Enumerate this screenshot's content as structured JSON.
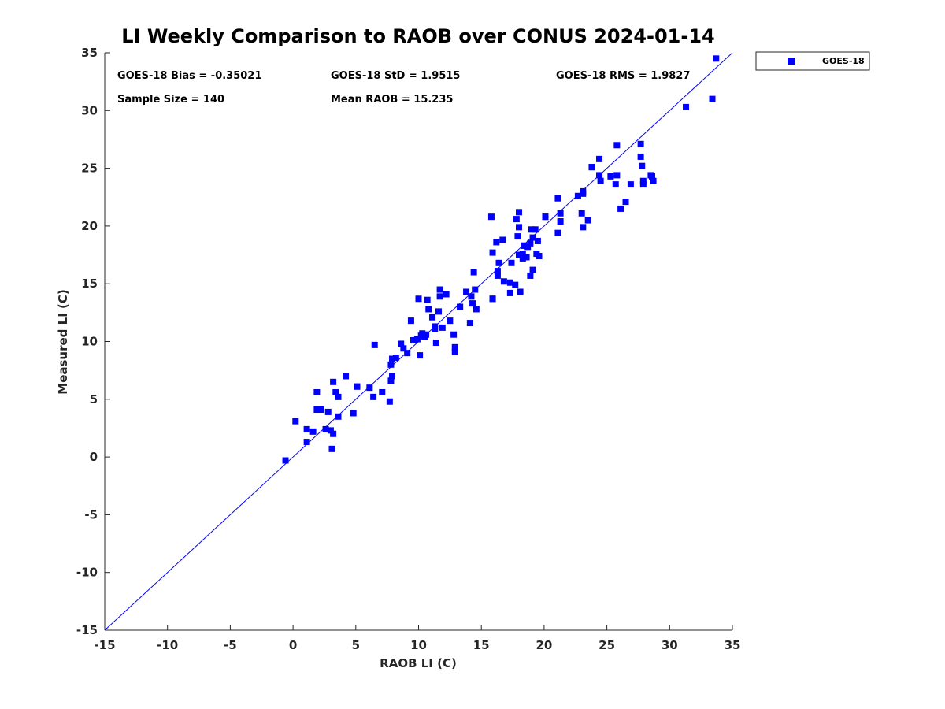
{
  "chart_data": {
    "type": "scatter",
    "title": "LI Weekly Comparison to RAOB over CONUS 2024-01-14",
    "xlabel": "RAOB LI (C)",
    "ylabel": "Measured LI (C)",
    "xlim": [
      -15,
      35
    ],
    "ylim": [
      -15,
      35
    ],
    "xticks": [
      -15,
      -10,
      -5,
      0,
      5,
      10,
      15,
      20,
      25,
      30,
      35
    ],
    "yticks": [
      -15,
      -10,
      -5,
      0,
      5,
      10,
      15,
      20,
      25,
      30,
      35
    ],
    "grid": false,
    "legend_position": "top-right-outside",
    "reference_line": {
      "label": "1:1 line",
      "from": [
        -15,
        -15
      ],
      "to": [
        35,
        35
      ],
      "color": "#0000ff"
    },
    "series": [
      {
        "name": "GOES-18",
        "color": "#0000ff",
        "marker": "square",
        "points": [
          [
            -0.6,
            -0.3
          ],
          [
            0.2,
            3.1
          ],
          [
            1.1,
            2.4
          ],
          [
            1.1,
            1.3
          ],
          [
            1.6,
            2.2
          ],
          [
            1.9,
            5.6
          ],
          [
            1.9,
            4.1
          ],
          [
            2.2,
            4.1
          ],
          [
            2.6,
            2.4
          ],
          [
            2.8,
            3.9
          ],
          [
            3.0,
            2.3
          ],
          [
            3.2,
            6.5
          ],
          [
            3.2,
            2.0
          ],
          [
            3.1,
            0.7
          ],
          [
            3.4,
            5.6
          ],
          [
            3.6,
            5.2
          ],
          [
            3.6,
            3.5
          ],
          [
            4.2,
            7.0
          ],
          [
            4.8,
            3.8
          ],
          [
            5.1,
            6.1
          ],
          [
            6.1,
            6.0
          ],
          [
            6.4,
            5.2
          ],
          [
            6.5,
            9.7
          ],
          [
            7.1,
            5.6
          ],
          [
            7.7,
            4.8
          ],
          [
            7.8,
            6.6
          ],
          [
            7.8,
            8.0
          ],
          [
            7.9,
            8.5
          ],
          [
            7.9,
            7.0
          ],
          [
            8.2,
            8.6
          ],
          [
            8.6,
            9.8
          ],
          [
            8.8,
            9.4
          ],
          [
            9.1,
            9.0
          ],
          [
            9.4,
            11.8
          ],
          [
            9.6,
            10.1
          ],
          [
            9.9,
            10.2
          ],
          [
            10.0,
            13.7
          ],
          [
            10.1,
            8.8
          ],
          [
            10.2,
            10.5
          ],
          [
            10.3,
            10.7
          ],
          [
            10.5,
            10.4
          ],
          [
            10.6,
            10.6
          ],
          [
            10.7,
            13.6
          ],
          [
            10.8,
            12.8
          ],
          [
            11.1,
            12.1
          ],
          [
            11.3,
            11.1
          ],
          [
            11.3,
            11.3
          ],
          [
            11.4,
            9.9
          ],
          [
            11.6,
            12.6
          ],
          [
            11.7,
            14.5
          ],
          [
            11.7,
            13.9
          ],
          [
            11.9,
            11.2
          ],
          [
            12.2,
            14.1
          ],
          [
            12.5,
            11.8
          ],
          [
            12.8,
            10.6
          ],
          [
            12.9,
            9.5
          ],
          [
            12.9,
            9.1
          ],
          [
            13.3,
            13.0
          ],
          [
            13.8,
            14.3
          ],
          [
            14.1,
            11.6
          ],
          [
            14.2,
            13.9
          ],
          [
            14.3,
            13.3
          ],
          [
            14.4,
            16.0
          ],
          [
            14.5,
            14.5
          ],
          [
            14.6,
            12.8
          ],
          [
            15.8,
            20.8
          ],
          [
            15.9,
            17.7
          ],
          [
            15.9,
            13.7
          ],
          [
            16.2,
            18.6
          ],
          [
            16.3,
            16.1
          ],
          [
            16.3,
            15.7
          ],
          [
            16.4,
            16.8
          ],
          [
            16.7,
            18.8
          ],
          [
            16.8,
            15.2
          ],
          [
            17.3,
            15.1
          ],
          [
            17.3,
            14.2
          ],
          [
            17.4,
            16.8
          ],
          [
            17.7,
            14.9
          ],
          [
            17.8,
            20.6
          ],
          [
            17.9,
            19.1
          ],
          [
            18.0,
            21.2
          ],
          [
            18.0,
            19.9
          ],
          [
            18.0,
            17.5
          ],
          [
            18.1,
            14.3
          ],
          [
            18.3,
            17.6
          ],
          [
            18.3,
            17.2
          ],
          [
            18.4,
            18.3
          ],
          [
            18.6,
            17.3
          ],
          [
            18.7,
            18.2
          ],
          [
            18.9,
            18.5
          ],
          [
            18.9,
            15.7
          ],
          [
            19.0,
            19.7
          ],
          [
            19.1,
            16.2
          ],
          [
            19.1,
            19.0
          ],
          [
            19.3,
            19.7
          ],
          [
            19.4,
            17.6
          ],
          [
            19.5,
            18.7
          ],
          [
            19.6,
            17.4
          ],
          [
            20.1,
            20.8
          ],
          [
            21.1,
            22.4
          ],
          [
            21.1,
            19.4
          ],
          [
            21.3,
            21.1
          ],
          [
            21.3,
            20.4
          ],
          [
            22.7,
            22.6
          ],
          [
            23.0,
            21.1
          ],
          [
            23.1,
            23.0
          ],
          [
            23.1,
            22.8
          ],
          [
            23.1,
            19.9
          ],
          [
            23.5,
            20.5
          ],
          [
            23.8,
            25.1
          ],
          [
            24.4,
            24.4
          ],
          [
            24.4,
            25.8
          ],
          [
            24.5,
            23.9
          ],
          [
            25.3,
            24.3
          ],
          [
            25.7,
            23.6
          ],
          [
            25.8,
            27.0
          ],
          [
            25.8,
            24.4
          ],
          [
            26.1,
            21.5
          ],
          [
            26.5,
            22.1
          ],
          [
            26.9,
            23.6
          ],
          [
            27.7,
            27.1
          ],
          [
            27.7,
            26.0
          ],
          [
            27.8,
            25.2
          ],
          [
            27.9,
            23.9
          ],
          [
            27.9,
            23.6
          ],
          [
            28.5,
            24.4
          ],
          [
            28.6,
            24.3
          ],
          [
            28.7,
            23.9
          ],
          [
            31.3,
            30.3
          ],
          [
            33.4,
            31.0
          ],
          [
            33.7,
            34.5
          ],
          [
            4.8,
            3.8
          ],
          [
            15.9,
            13.7
          ],
          [
            20.1,
            20.8
          ],
          [
            9.6,
            10.1
          ],
          [
            13.3,
            13.0
          ],
          [
            12.2,
            14.1
          ],
          [
            18.4,
            18.3
          ],
          [
            23.8,
            25.1
          ],
          [
            5.1,
            6.1
          ]
        ]
      }
    ],
    "annotations": {
      "bias": "GOES-18 Bias = -0.35021",
      "std": "GOES-18 StD = 1.9515",
      "rms": "GOES-18 RMS = 1.9827",
      "sample_size": "Sample Size = 140",
      "mean_raob": "Mean RAOB = 15.235"
    }
  }
}
